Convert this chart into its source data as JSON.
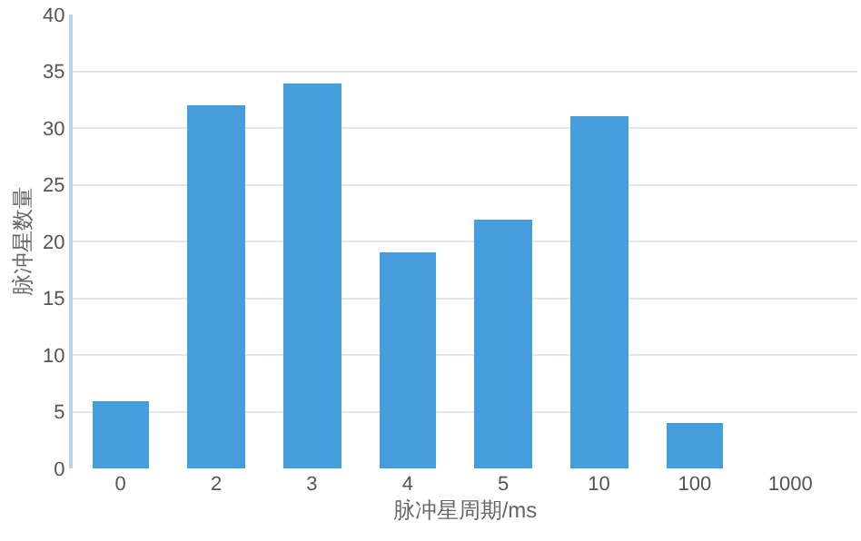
{
  "chart_data": {
    "type": "bar",
    "xlabel": "脉冲星周期/ms",
    "ylabel": "脉冲星数量",
    "categories": [
      "0",
      "2",
      "3",
      "4",
      "5",
      "10",
      "100",
      "1000"
    ],
    "values": [
      6,
      32,
      34,
      19,
      22,
      31,
      4,
      null
    ],
    "color": "#459ddc",
    "ylim": [
      0,
      40
    ],
    "yticks": [
      0,
      5,
      10,
      15,
      20,
      25,
      30,
      35,
      40
    ],
    "grid": "y"
  }
}
